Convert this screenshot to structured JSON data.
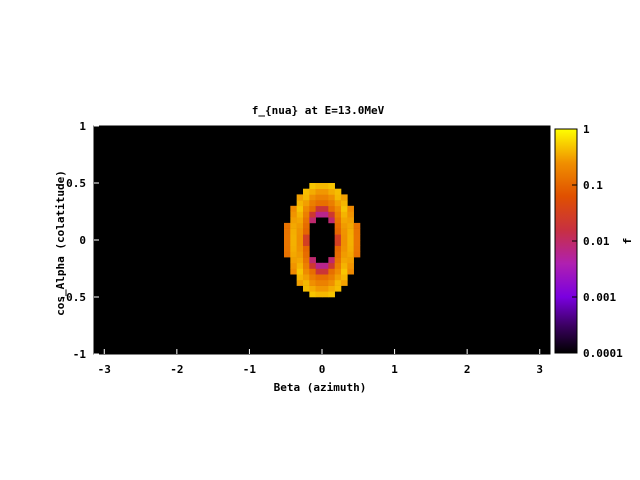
{
  "chart_data": {
    "type": "heatmap",
    "title": "f_{nua} at E=13.0MeV",
    "xlabel": "Beta (azimuth)",
    "ylabel": "cos_Alpha (colatitude)",
    "colorbar_label": "f",
    "xlim": [
      -3.14159,
      3.14159
    ],
    "ylim": [
      -1,
      1
    ],
    "x_ticks": [
      "-3",
      "-2",
      "-1",
      "0",
      "1",
      "2",
      "3"
    ],
    "x_tick_values": [
      -3,
      -2,
      -1,
      0,
      1,
      2,
      3
    ],
    "y_ticks": [
      "1",
      "0.5",
      "0",
      "-0.5",
      "-1"
    ],
    "y_tick_values": [
      1,
      0.5,
      0,
      -0.5,
      -1
    ],
    "colorbar_scale": "log",
    "colorbar_range": [
      0.0001,
      1
    ],
    "colorbar_ticks": [
      "1",
      "0.1",
      "0.01",
      "0.001",
      "0.0001"
    ],
    "colorbar_tick_values": [
      1,
      0.1,
      0.01,
      0.001,
      0.0001
    ],
    "background_value": 0.0001,
    "feature": {
      "shape": "elliptical ring",
      "center": [
        0,
        0
      ],
      "outer_half_width_beta": 0.5,
      "outer_half_height_cos_alpha": 0.5,
      "inner_half_width_beta": 0.22,
      "inner_half_height_cos_alpha": 0.3,
      "ring_value_range": [
        0.05,
        0.5
      ],
      "inner_edge_value": 0.005
    },
    "grid": false,
    "legend": "colorbar-right"
  }
}
